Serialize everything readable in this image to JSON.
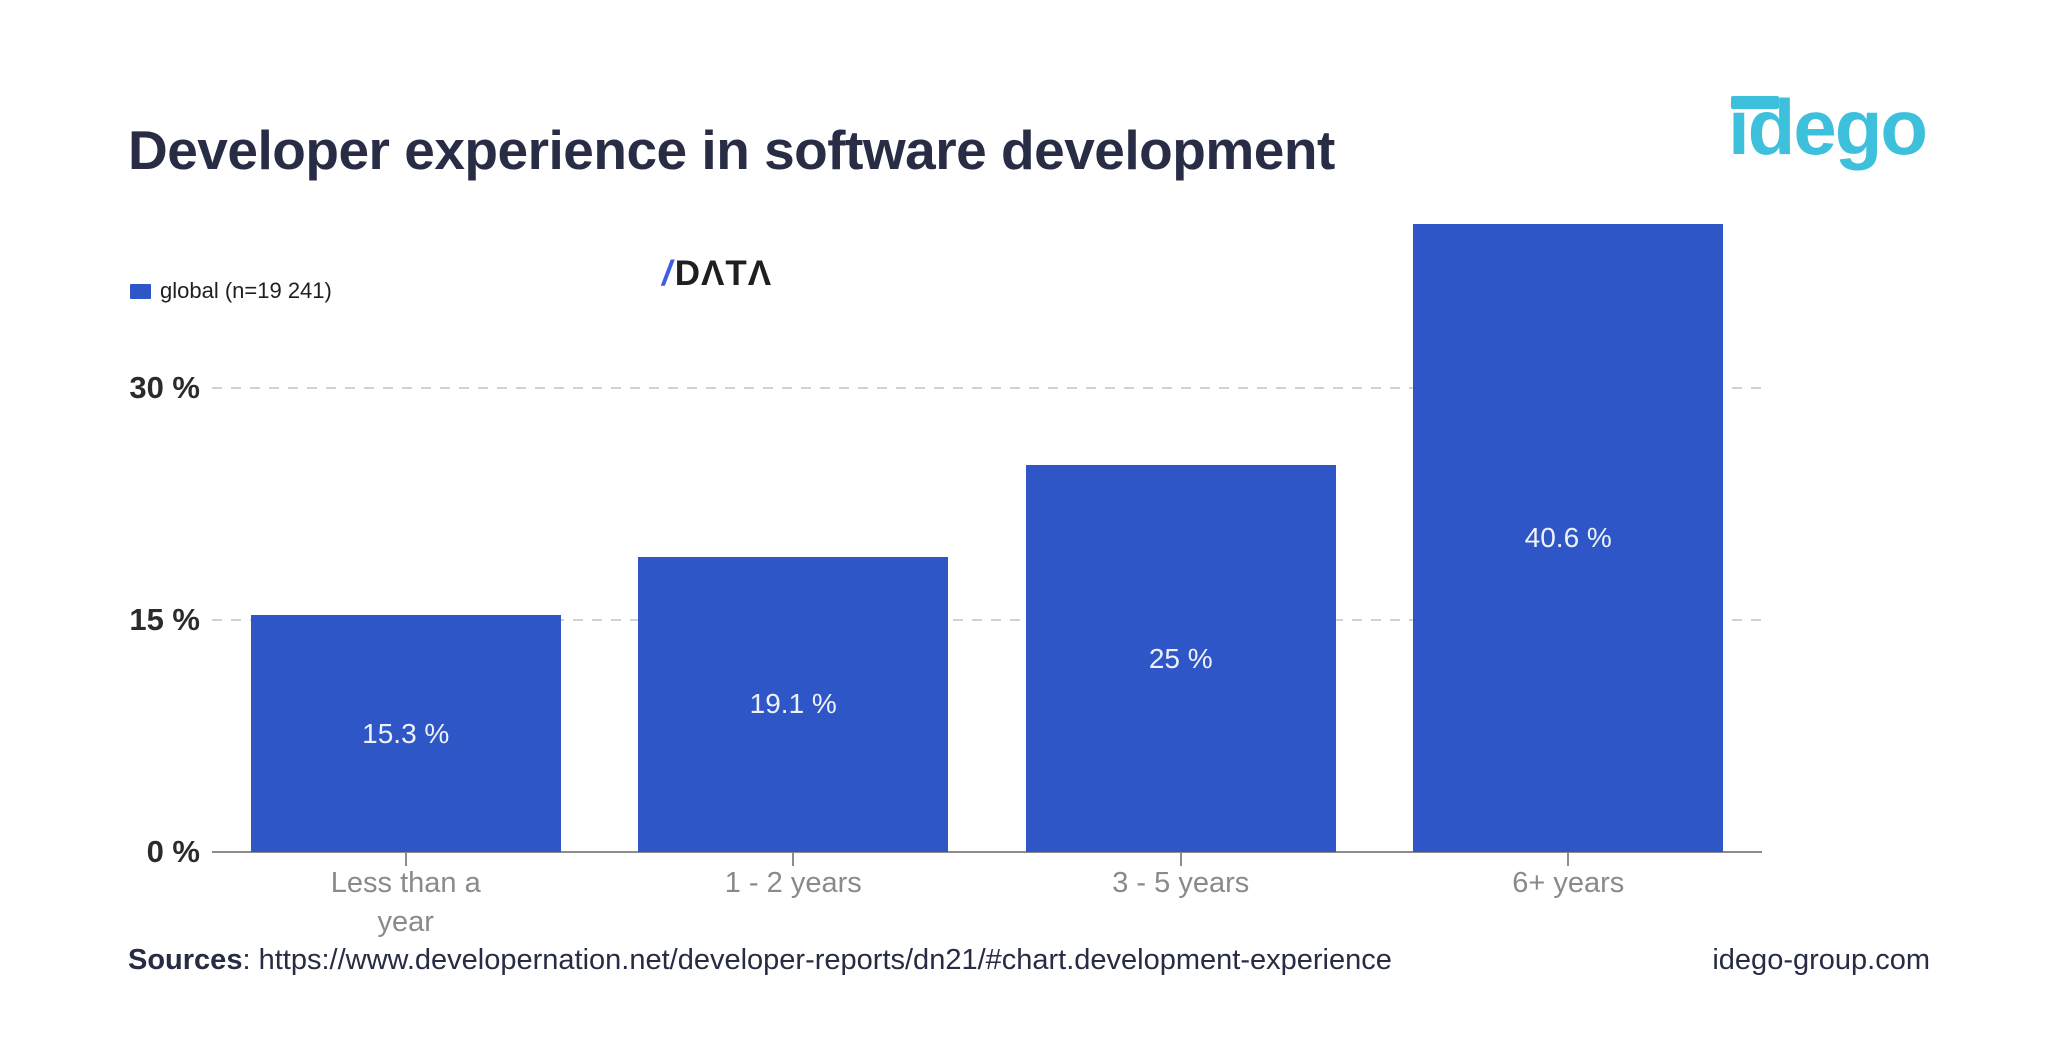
{
  "page": {
    "background": "#ffffff"
  },
  "header": {
    "title": "Developer experience in software development"
  },
  "branding": {
    "idego_logo_text": "idego",
    "idego_color": "#3dc0db",
    "slashdata_logo": {
      "slash": "/",
      "text": "DATA",
      "slash_color": "#3e5de0",
      "text_color": "#1f1f1f"
    }
  },
  "legend": {
    "label": "global (n=19 241)"
  },
  "chart_data": {
    "type": "bar",
    "title": "Developer experience in software development",
    "series_name": "global (n=19 241)",
    "categories": [
      "Less than a year",
      "1 - 2 years",
      "3 - 5 years",
      "6+ years"
    ],
    "category_labels_wrapped": [
      "Less than a\nyear",
      "1 - 2 years",
      "3 - 5 years",
      "6+ years"
    ],
    "values": [
      15.3,
      19.1,
      25,
      40.6
    ],
    "value_labels": [
      "15.3 %",
      "19.1 %",
      "25 %",
      "40.6 %"
    ],
    "xlabel": "",
    "ylabel": "",
    "y_ticks": [
      "0 %",
      "15 %",
      "30 %"
    ],
    "y_tick_values": [
      0,
      15,
      30
    ],
    "ylim": [
      0,
      44
    ],
    "grid": "horizontal dashed",
    "legend_position": "top-left",
    "bar_color": "#2e56c7",
    "value_label_color": "#eef1f8",
    "axis_label_color": "#8a8a8a",
    "tick_label_color": "#2b2b2b"
  },
  "footer": {
    "sources_label": "Sources",
    "sources_separator": ": ",
    "sources_url": "https://www.developernation.net/developer-reports/dn21/#chart.development-experience",
    "site": "idego-group.com"
  }
}
